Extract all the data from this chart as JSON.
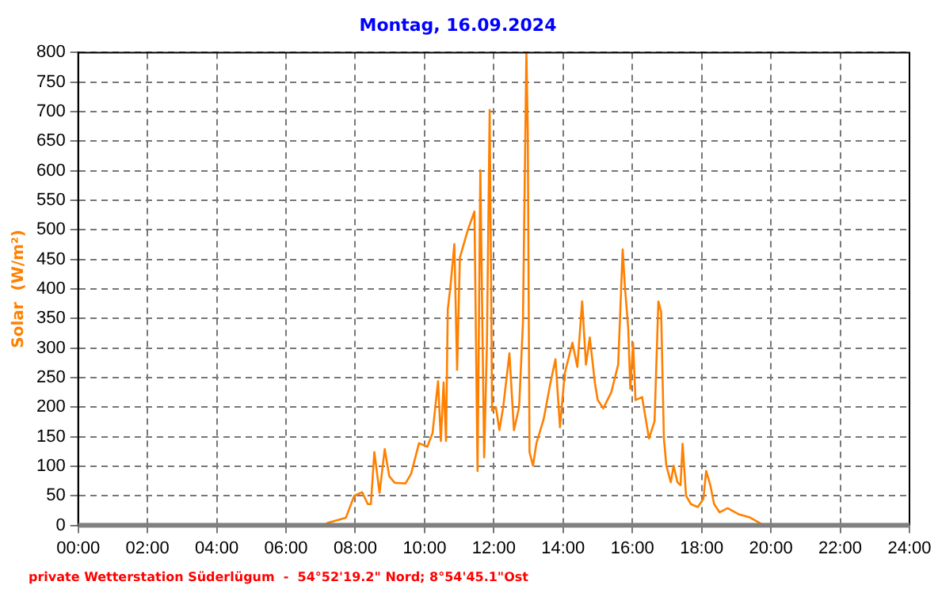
{
  "chart_data": {
    "type": "line",
    "title": "Montag, 16.09.2024",
    "ylabel": "Solar  (W/m²)",
    "annotations": [
      "private Wetterstation Süderlügum  -  54°52'19.2\" Nord; 8°54'45.1\"Ost"
    ],
    "x": [
      5.5,
      7.11,
      7.2,
      7.73,
      7.97,
      8.2,
      8.36,
      8.45,
      8.55,
      8.7,
      8.85,
      8.98,
      9.14,
      9.45,
      9.61,
      9.84,
      10.08,
      10.23,
      10.39,
      10.47,
      10.55,
      10.62,
      10.67,
      10.75,
      10.86,
      10.94,
      11.02,
      11.25,
      11.44,
      11.53,
      11.61,
      11.72,
      11.8,
      11.88,
      11.95,
      12.06,
      12.16,
      12.27,
      12.45,
      12.58,
      12.73,
      12.84,
      12.94,
      12.98,
      13.03,
      13.13,
      13.23,
      13.44,
      13.63,
      13.78,
      13.91,
      14.03,
      14.05,
      14.27,
      14.41,
      14.55,
      14.66,
      14.77,
      14.92,
      15.0,
      15.16,
      15.39,
      15.59,
      15.72,
      15.78,
      15.88,
      15.94,
      16.02,
      16.09,
      16.28,
      16.48,
      16.64,
      16.69,
      16.75,
      16.83,
      16.91,
      16.98,
      17.11,
      17.19,
      17.3,
      17.39,
      17.45,
      17.55,
      17.69,
      17.89,
      18.05,
      18.13,
      18.25,
      18.36,
      18.52,
      18.75,
      19.06,
      19.37,
      19.77,
      20.6
    ],
    "series": [
      {
        "color": "#ff8000",
        "values": [
          0,
          0,
          4,
          13,
          50,
          56,
          36,
          36,
          124,
          55,
          129,
          83,
          72,
          71,
          87,
          139,
          133,
          156,
          244,
          143,
          242,
          143,
          365,
          406,
          476,
          263,
          453,
          500,
          531,
          92,
          601,
          115,
          305,
          703,
          194,
          200,
          161,
          200,
          291,
          161,
          200,
          342,
          800,
          666,
          124,
          101,
          139,
          180,
          240,
          281,
          166,
          246,
          258,
          309,
          268,
          379,
          272,
          318,
          240,
          212,
          198,
          225,
          272,
          467,
          407,
          333,
          231,
          309,
          212,
          217,
          147,
          176,
          268,
          379,
          361,
          147,
          101,
          73,
          101,
          73,
          68,
          138,
          50,
          36,
          31,
          45,
          92,
          68,
          36,
          22,
          29,
          19,
          14,
          1,
          0
        ]
      }
    ],
    "xlim": [
      0,
      24
    ],
    "xticks": [
      {
        "value": 0,
        "label": "00:00"
      },
      {
        "value": 2,
        "label": "02:00"
      },
      {
        "value": 4,
        "label": "04:00"
      },
      {
        "value": 6,
        "label": "06:00"
      },
      {
        "value": 8,
        "label": "08:00"
      },
      {
        "value": 10,
        "label": "10:00"
      },
      {
        "value": 12,
        "label": "12:00"
      },
      {
        "value": 14,
        "label": "14:00"
      },
      {
        "value": 16,
        "label": "16:00"
      },
      {
        "value": 18,
        "label": "18:00"
      },
      {
        "value": 20,
        "label": "20:00"
      },
      {
        "value": 22,
        "label": "22:00"
      },
      {
        "value": 24,
        "label": "24:00"
      }
    ],
    "ylim": [
      0,
      800
    ],
    "yticks": [
      0,
      50,
      100,
      150,
      200,
      250,
      300,
      350,
      400,
      450,
      500,
      550,
      600,
      650,
      700,
      750,
      800
    ],
    "grid": true,
    "legend": false,
    "marker": "none",
    "line_style": "solid"
  }
}
